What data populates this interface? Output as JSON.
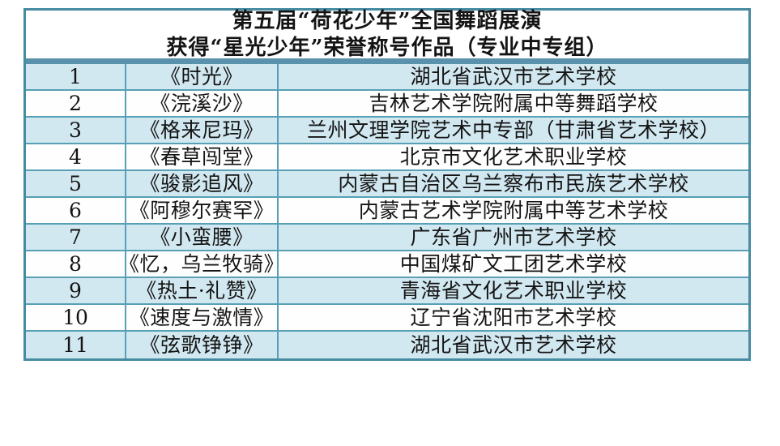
{
  "header": {
    "title_line1": "第五届“荷花少年”全国舞蹈展演",
    "title_line2": "获得“星光少年”荣誉称号作品（专业中专组）"
  },
  "table": {
    "rows": [
      {
        "no": "1",
        "title": "《时光》",
        "school": "湖北省武汉市艺术学校"
      },
      {
        "no": "2",
        "title": "《浣溪沙》",
        "school": "吉林艺术学院附属中等舞蹈学校"
      },
      {
        "no": "3",
        "title": "《格来尼玛》",
        "school": "兰州文理学院艺术中专部（甘肃省艺术学校）"
      },
      {
        "no": "4",
        "title": "《春草闯堂》",
        "school": "北京市文化艺术职业学校"
      },
      {
        "no": "5",
        "title": "《骏影追风》",
        "school": "内蒙古自治区乌兰察布市民族艺术学校"
      },
      {
        "no": "6",
        "title": "《阿穆尔赛罕》",
        "school": "内蒙古艺术学院附属中等艺术学校"
      },
      {
        "no": "7",
        "title": "《小蛮腰》",
        "school": "广东省广州市艺术学校"
      },
      {
        "no": "8",
        "title": "《忆，乌兰牧骑》",
        "school": "中国煤矿文工团艺术学校"
      },
      {
        "no": "9",
        "title": "《热土·礼赞》",
        "school": "青海省文化艺术职业学校"
      },
      {
        "no": "10",
        "title": "《速度与激情》",
        "school": "辽宁省沈阳市艺术学校"
      },
      {
        "no": "11",
        "title": "《弦歌铮铮》",
        "school": "湖北省武汉市艺术学校"
      }
    ]
  },
  "colors": {
    "grid": "#57a0b6",
    "outer_border": "#478ba2",
    "title_divider": "#5b92ab",
    "row_alternate": "#d2e8f1",
    "row_plain": "#fefefe",
    "text": "#141414"
  }
}
